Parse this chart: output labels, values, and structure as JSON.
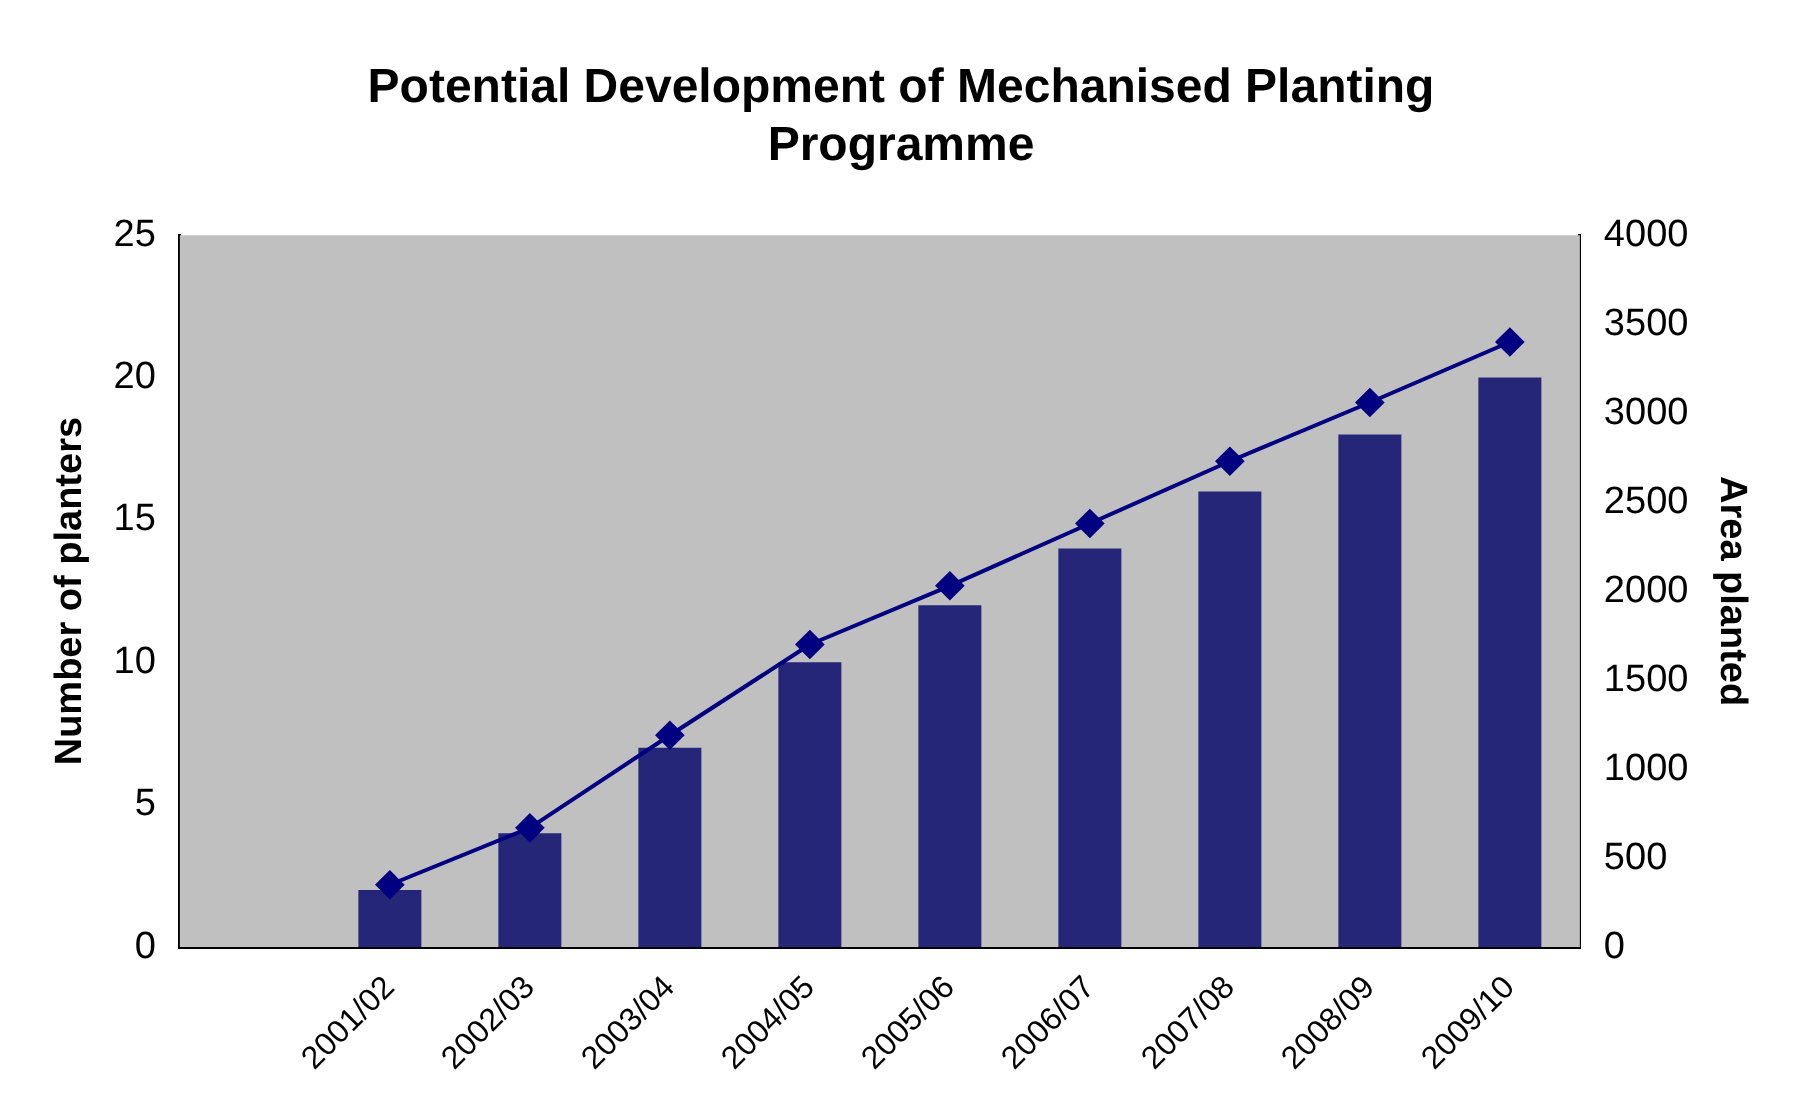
{
  "chart_data": {
    "type": "bar",
    "title": "Potential Development of Mechanised Planting Programme",
    "ylabel": "Number of planters",
    "y2label": "Area planted",
    "categories": [
      null,
      "2001/02",
      "2002/03",
      "2003/04",
      "2004/05",
      "2005/06",
      "2006/07",
      "2007/08",
      "2008/09",
      "2009/10"
    ],
    "series": [
      {
        "color": "#262678",
        "values": [
          null,
          2,
          4,
          7,
          10,
          12,
          14,
          16,
          18,
          20
        ]
      },
      {
        "type": "line",
        "axis": "y2",
        "color": "#000080",
        "marker": "diamond",
        "values": [
          null,
          350,
          670,
          1190,
          1700,
          2030,
          2380,
          2730,
          3060,
          3400
        ]
      }
    ],
    "ylim": [
      0,
      25
    ],
    "yticks": [
      0,
      5,
      10,
      15,
      20,
      25
    ],
    "y2lim": [
      0,
      4000
    ],
    "y2ticks": [
      0,
      500,
      1000,
      1500,
      2000,
      2500,
      3000,
      3500,
      4000
    ],
    "grid": false,
    "legend": false
  }
}
